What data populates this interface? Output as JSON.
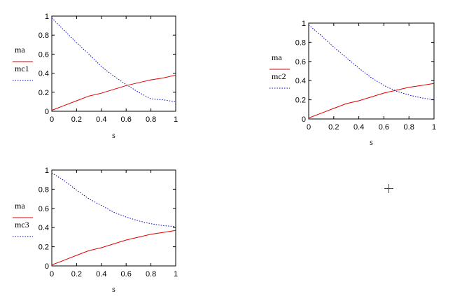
{
  "chart_data": [
    {
      "type": "line",
      "xlabel": "s",
      "ylabel": "",
      "xlim": [
        0,
        1
      ],
      "ylim": [
        0,
        1
      ],
      "x_ticks": [
        "0",
        "0.2",
        "0.4",
        "0.6",
        "0.8",
        "1"
      ],
      "y_ticks": [
        "0",
        "0.2",
        "0.4",
        "0.6",
        "0.8",
        "1"
      ],
      "grid": false,
      "legend": "left",
      "series": [
        {
          "name": "ma",
          "color": "#e00000",
          "style": "solid",
          "x": [
            0,
            0.1,
            0.2,
            0.3,
            0.4,
            0.5,
            0.6,
            0.7,
            0.8,
            0.9,
            1.0
          ],
          "y": [
            0.01,
            0.06,
            0.11,
            0.16,
            0.19,
            0.23,
            0.27,
            0.3,
            0.33,
            0.35,
            0.38
          ]
        },
        {
          "name": "mc1",
          "color": "#0000cc",
          "style": "dotted",
          "x": [
            0,
            0.1,
            0.2,
            0.3,
            0.4,
            0.5,
            0.6,
            0.7,
            0.8,
            0.9,
            1.0
          ],
          "y": [
            0.98,
            0.85,
            0.72,
            0.6,
            0.47,
            0.37,
            0.28,
            0.2,
            0.13,
            0.12,
            0.1
          ]
        }
      ]
    },
    {
      "type": "line",
      "xlabel": "s",
      "ylabel": "",
      "xlim": [
        0,
        1
      ],
      "ylim": [
        0,
        1
      ],
      "x_ticks": [
        "0",
        "0.2",
        "0.4",
        "0.6",
        "0.8",
        "1"
      ],
      "y_ticks": [
        "0",
        "0.2",
        "0.4",
        "0.6",
        "0.8",
        "1"
      ],
      "grid": false,
      "legend": "left",
      "series": [
        {
          "name": "ma",
          "color": "#e00000",
          "style": "solid",
          "x": [
            0,
            0.1,
            0.2,
            0.3,
            0.4,
            0.5,
            0.6,
            0.7,
            0.8,
            0.9,
            1.0
          ],
          "y": [
            0.01,
            0.06,
            0.11,
            0.16,
            0.19,
            0.23,
            0.27,
            0.3,
            0.33,
            0.35,
            0.37
          ]
        },
        {
          "name": "mc2",
          "color": "#0000cc",
          "style": "dotted",
          "x": [
            0,
            0.1,
            0.2,
            0.3,
            0.4,
            0.5,
            0.6,
            0.7,
            0.8,
            0.9,
            1.0
          ],
          "y": [
            0.98,
            0.87,
            0.75,
            0.64,
            0.53,
            0.43,
            0.35,
            0.29,
            0.25,
            0.22,
            0.2
          ]
        }
      ]
    },
    {
      "type": "line",
      "xlabel": "s",
      "ylabel": "",
      "xlim": [
        0,
        1
      ],
      "ylim": [
        0,
        1
      ],
      "x_ticks": [
        "0",
        "0.2",
        "0.4",
        "0.6",
        "0.8",
        "1"
      ],
      "y_ticks": [
        "0",
        "0.2",
        "0.4",
        "0.6",
        "0.8",
        "1"
      ],
      "grid": false,
      "legend": "left",
      "series": [
        {
          "name": "ma",
          "color": "#e00000",
          "style": "solid",
          "x": [
            0,
            0.1,
            0.2,
            0.3,
            0.4,
            0.5,
            0.6,
            0.7,
            0.8,
            0.9,
            1.0
          ],
          "y": [
            0.01,
            0.06,
            0.11,
            0.16,
            0.19,
            0.23,
            0.27,
            0.3,
            0.33,
            0.35,
            0.37
          ]
        },
        {
          "name": "mc3",
          "color": "#0000cc",
          "style": "dotted",
          "x": [
            0,
            0.1,
            0.2,
            0.3,
            0.4,
            0.5,
            0.6,
            0.7,
            0.8,
            0.9,
            1.0
          ],
          "y": [
            0.97,
            0.89,
            0.79,
            0.7,
            0.63,
            0.56,
            0.51,
            0.47,
            0.44,
            0.42,
            0.41
          ]
        }
      ]
    }
  ],
  "cursor": {
    "icon": "crosshair-cursor-icon",
    "color": "#e00000"
  }
}
